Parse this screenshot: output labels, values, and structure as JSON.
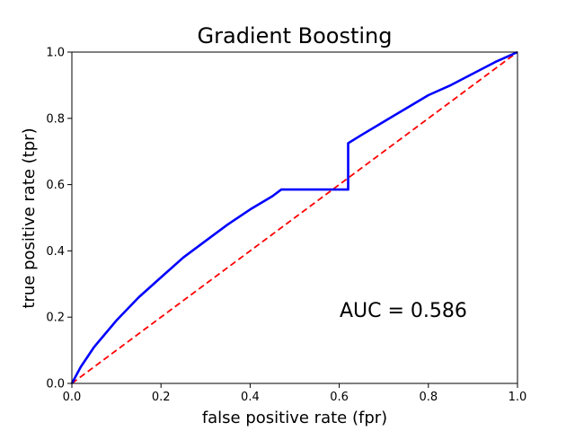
{
  "chart_data": {
    "type": "line",
    "title": "Gradient Boosting",
    "xlabel": "false positive rate (fpr)",
    "ylabel": "true positive rate (tpr)",
    "xlim": [
      0,
      1
    ],
    "ylim": [
      0,
      1
    ],
    "xticks": [
      "0.0",
      "0.2",
      "0.4",
      "0.6",
      "0.8",
      "1.0"
    ],
    "yticks": [
      "0.0",
      "0.2",
      "0.4",
      "0.6",
      "0.8",
      "1.0"
    ],
    "grid": false,
    "annotation": "AUC = 0.586",
    "series": [
      {
        "color": "#0000ff",
        "style": "solid",
        "x": [
          0.0,
          0.02,
          0.05,
          0.1,
          0.15,
          0.2,
          0.25,
          0.3,
          0.35,
          0.4,
          0.45,
          0.47,
          0.5,
          0.55,
          0.6,
          0.62,
          0.62,
          0.65,
          0.7,
          0.75,
          0.8,
          0.85,
          0.9,
          0.95,
          1.0
        ],
        "y": [
          0.0,
          0.05,
          0.11,
          0.19,
          0.26,
          0.32,
          0.38,
          0.43,
          0.48,
          0.525,
          0.565,
          0.585,
          0.585,
          0.585,
          0.585,
          0.585,
          0.725,
          0.75,
          0.79,
          0.83,
          0.87,
          0.9,
          0.935,
          0.97,
          1.0
        ]
      },
      {
        "color": "#ff0000",
        "style": "dashed",
        "x": [
          0.0,
          1.0
        ],
        "y": [
          0.0,
          1.0
        ]
      }
    ]
  }
}
